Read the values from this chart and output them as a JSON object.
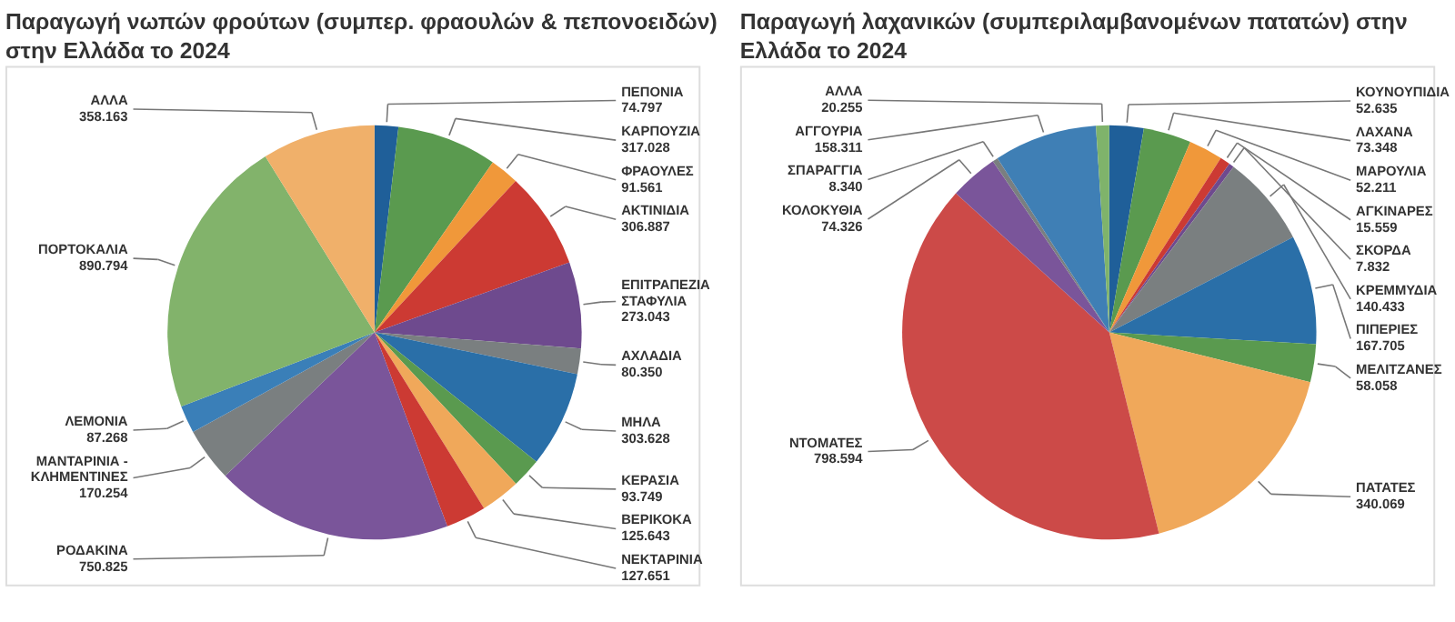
{
  "chart_data": [
    {
      "type": "pie",
      "title": "Παραγωγή νωπών φρούτων (συμπερ. φραουλών & πεπονοειδών) στην Ελλάδα το 2024",
      "categories": [
        "ΠΕΠΟΝΙΑ",
        "ΚΑΡΠΟΥΖΙΑ",
        "ΦΡΑΟΥΛΕΣ",
        "ΑΚΤΙΝΙΔΙΑ",
        "ΕΠΙΤΡΑΠΕΖΙΑ ΣΤΑΦΥΛΙΑ",
        "ΑΧΛΑΔΙΑ",
        "ΜΗΛΑ",
        "ΚΕΡΑΣΙΑ",
        "ΒΕΡΙΚΟΚΑ",
        "ΝΕΚΤΑΡΙΝΙΑ",
        "ΡΟΔΑΚΙΝΑ",
        "ΜΑΝΤΑΡΙΝΙΑ - ΚΛΗΜΕΝΤΙΝΕΣ",
        "ΛΕΜΟΝΙΑ",
        "ΠΟΡΤΟΚΑΛΙΑ",
        "ΑΛΛΑ"
      ],
      "values": [
        74797,
        317028,
        91561,
        306887,
        273043,
        80350,
        303628,
        93749,
        125643,
        127651,
        750825,
        170254,
        87268,
        890794,
        358163
      ],
      "value_labels": [
        "74.797",
        "317.028",
        "91.561",
        "306.887",
        "273.043",
        "80.350",
        "303.628",
        "93.749",
        "125.643",
        "127.651",
        "750.825",
        "170.254",
        "87.268",
        "890.794",
        "358.163"
      ],
      "colors": [
        "#1f5f99",
        "#5a9a4f",
        "#f0983a",
        "#cc3a33",
        "#6e4a8e",
        "#7a7f80",
        "#2a6fa8",
        "#5a9a4f",
        "#f0a85a",
        "#cc3a33",
        "#7a559a",
        "#7a7f80",
        "#3a7fb8",
        "#82b36b",
        "#f0b06a"
      ]
    },
    {
      "type": "pie",
      "title": "Παραγωγή λαχανικών (συμπεριλαμβανομένων πατατών) στην Ελλάδα το 2024",
      "categories": [
        "ΚΟΥΝΟΥΠΙΔΙΑ",
        "ΛΑΧΑΝΑ",
        "ΜΑΡΟΥΛΙΑ",
        "ΑΓΚΙΝΑΡΕΣ",
        "ΣΚΟΡΔΑ",
        "ΚΡΕΜΜΥΔΙΑ",
        "ΠΙΠΕΡΙΕΣ",
        "ΜΕΛΙΤΖΑΝΕΣ",
        "ΠΑΤΑΤΕΣ",
        "ΝΤΟΜΑΤΕΣ",
        "ΚΟΛΟΚΥΘΙΑ",
        "ΣΠΑΡΑΓΓΙΑ",
        "ΑΓΓΟΥΡΙΑ",
        "ΑΛΛΑ"
      ],
      "values": [
        52635,
        73348,
        52211,
        15559,
        7832,
        140433,
        167705,
        58058,
        340069,
        798594,
        74326,
        8340,
        158311,
        20255
      ],
      "value_labels": [
        "52.635",
        "73.348",
        "52.211",
        "15.559",
        "7.832",
        "140.433",
        "167.705",
        "58.058",
        "340.069",
        "798.594",
        "74.326",
        "8.340",
        "158.311",
        "20.255"
      ],
      "colors": [
        "#1f5f99",
        "#5a9a4f",
        "#f0983a",
        "#cc3a33",
        "#6e4a8e",
        "#7a7f80",
        "#2a6fa8",
        "#5a9a4f",
        "#f0a85a",
        "#cc4a48",
        "#7a559a",
        "#7a7f80",
        "#3f7fb5",
        "#7fb36b"
      ]
    }
  ]
}
